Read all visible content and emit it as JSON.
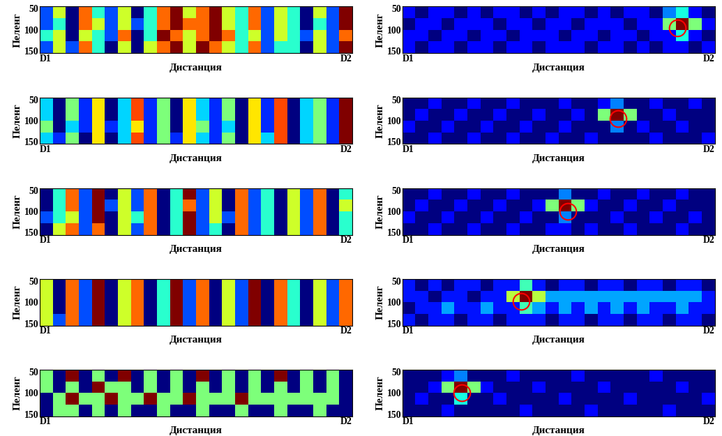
{
  "chart_data": [
    {
      "type": "heatmap",
      "x_label": "Дистанция",
      "y_label": "Пеленг",
      "xlim": [
        0,
        1
      ],
      "xticks": [
        {
          "value": 0,
          "label": "D1"
        },
        {
          "value": 1,
          "label": "D2"
        }
      ],
      "ylim": [
        155,
        45
      ],
      "yticks": [
        50,
        100,
        150
      ],
      "cells": [
        [
          3,
          5,
          2,
          6,
          4,
          3,
          5,
          2,
          4,
          6,
          7,
          5,
          6,
          7,
          5,
          4,
          6,
          3,
          5,
          4,
          2,
          5,
          3,
          7
        ],
        [
          3,
          4,
          2,
          6,
          5,
          3,
          5,
          3,
          4,
          6,
          7,
          6,
          6,
          7,
          5,
          4,
          6,
          3,
          5,
          4,
          2,
          4,
          3,
          7
        ],
        [
          4,
          5,
          2,
          5,
          4,
          3,
          6,
          2,
          4,
          7,
          6,
          5,
          6,
          7,
          6,
          4,
          5,
          3,
          5,
          4,
          3,
          5,
          3,
          6
        ],
        [
          3,
          5,
          3,
          6,
          4,
          2,
          5,
          2,
          5,
          6,
          7,
          5,
          7,
          6,
          5,
          4,
          6,
          3,
          4,
          4,
          2,
          5,
          3,
          7
        ]
      ]
    },
    {
      "type": "heatmap",
      "x_label": "Дистанция",
      "y_label": "Пеленг",
      "xlim": [
        0,
        1
      ],
      "xticks": [
        {
          "value": 0,
          "label": "D1"
        },
        {
          "value": 1,
          "label": "D2"
        }
      ],
      "ylim": [
        155,
        45
      ],
      "yticks": [
        50,
        100,
        150
      ],
      "cells": [
        [
          2,
          1,
          2,
          2,
          1,
          2,
          1,
          2,
          2,
          1,
          2,
          1,
          2,
          2,
          1,
          2,
          1,
          2,
          2,
          1,
          3,
          4,
          2,
          1
        ],
        [
          1,
          2,
          2,
          1,
          2,
          2,
          2,
          1,
          2,
          2,
          1,
          2,
          2,
          1,
          2,
          2,
          2,
          1,
          2,
          2,
          5,
          9,
          5,
          2
        ],
        [
          2,
          2,
          1,
          2,
          2,
          1,
          2,
          2,
          1,
          2,
          2,
          2,
          1,
          2,
          2,
          1,
          2,
          2,
          1,
          2,
          2,
          4,
          2,
          1
        ],
        [
          2,
          1,
          2,
          2,
          1,
          2,
          2,
          1,
          2,
          2,
          1,
          2,
          2,
          2,
          1,
          2,
          2,
          1,
          2,
          1,
          2,
          2,
          1,
          2
        ]
      ],
      "target": [
        0.88,
        95
      ],
      "color": "#ff0000"
    },
    {
      "type": "heatmap",
      "x_label": "Дистанция",
      "y_label": "Пеленг",
      "xlim": [
        0,
        1
      ],
      "xticks": [
        {
          "value": 0,
          "label": "D1"
        },
        {
          "value": 1,
          "label": "D2"
        }
      ],
      "ylim": [
        155,
        45
      ],
      "yticks": [
        50,
        100,
        150
      ],
      "cells": [
        [
          4,
          2,
          5,
          3,
          6,
          2,
          4,
          7,
          3,
          5,
          2,
          6,
          4,
          3,
          5,
          2,
          6,
          3,
          7,
          2,
          4,
          5,
          3,
          8
        ],
        [
          4,
          2,
          5,
          3,
          6,
          2,
          4,
          7,
          3,
          5,
          2,
          6,
          4,
          3,
          5,
          2,
          6,
          3,
          7,
          2,
          4,
          5,
          3,
          8
        ],
        [
          5,
          2,
          4,
          3,
          6,
          3,
          4,
          6,
          3,
          5,
          2,
          6,
          5,
          3,
          4,
          2,
          6,
          3,
          7,
          2,
          4,
          5,
          3,
          8
        ],
        [
          4,
          3,
          5,
          2,
          6,
          2,
          4,
          7,
          3,
          5,
          3,
          6,
          4,
          3,
          5,
          2,
          6,
          4,
          7,
          2,
          4,
          5,
          3,
          8
        ]
      ]
    },
    {
      "type": "heatmap",
      "x_label": "Дистанция",
      "y_label": "Пеленг",
      "xlim": [
        0,
        1
      ],
      "xticks": [
        {
          "value": 0,
          "label": "D1"
        },
        {
          "value": 1,
          "label": "D2"
        }
      ],
      "ylim": [
        155,
        45
      ],
      "yticks": [
        50,
        100,
        150
      ],
      "cells": [
        [
          1,
          1,
          2,
          1,
          1,
          2,
          1,
          1,
          2,
          1,
          1,
          1,
          2,
          1,
          1,
          2,
          3,
          1,
          1,
          2,
          1,
          1,
          2,
          1
        ],
        [
          1,
          2,
          1,
          1,
          2,
          1,
          1,
          2,
          1,
          1,
          2,
          1,
          1,
          2,
          1,
          5,
          9,
          5,
          1,
          1,
          2,
          1,
          1,
          1
        ],
        [
          2,
          1,
          1,
          2,
          1,
          1,
          2,
          1,
          1,
          2,
          1,
          1,
          2,
          1,
          1,
          1,
          3,
          1,
          2,
          1,
          1,
          2,
          1,
          1
        ],
        [
          1,
          1,
          2,
          1,
          1,
          2,
          1,
          1,
          2,
          1,
          1,
          2,
          1,
          1,
          2,
          1,
          1,
          1,
          1,
          2,
          1,
          1,
          1,
          2
        ]
      ],
      "target": [
        0.69,
        95
      ],
      "color": "#ff0000"
    },
    {
      "type": "heatmap",
      "x_label": "Дистанция",
      "y_label": "Пеленг",
      "xlim": [
        0,
        1
      ],
      "xticks": [
        {
          "value": 0,
          "label": "D1"
        },
        {
          "value": 1,
          "label": "D2"
        }
      ],
      "ylim": [
        155,
        45
      ],
      "yticks": [
        50,
        100,
        150
      ],
      "cells": [
        [
          2,
          4,
          6,
          3,
          7,
          2,
          5,
          3,
          6,
          2,
          4,
          7,
          3,
          5,
          2,
          6,
          3,
          4,
          2,
          5,
          3,
          6,
          2,
          4
        ],
        [
          2,
          4,
          6,
          3,
          7,
          3,
          5,
          3,
          6,
          2,
          4,
          6,
          3,
          5,
          2,
          6,
          3,
          4,
          2,
          5,
          3,
          6,
          2,
          5
        ],
        [
          3,
          4,
          5,
          3,
          7,
          2,
          5,
          4,
          6,
          2,
          4,
          7,
          3,
          5,
          3,
          6,
          3,
          4,
          2,
          5,
          3,
          6,
          2,
          4
        ],
        [
          2,
          5,
          6,
          3,
          6,
          2,
          5,
          3,
          6,
          2,
          4,
          7,
          3,
          4,
          2,
          6,
          3,
          4,
          2,
          5,
          3,
          6,
          2,
          4
        ]
      ]
    },
    {
      "type": "heatmap",
      "x_label": "Дистанция",
      "y_label": "Пеленг",
      "xlim": [
        0,
        1
      ],
      "xticks": [
        {
          "value": 0,
          "label": "D1"
        },
        {
          "value": 1,
          "label": "D2"
        }
      ],
      "ylim": [
        155,
        45
      ],
      "yticks": [
        50,
        100,
        150
      ],
      "cells": [
        [
          1,
          1,
          2,
          1,
          1,
          2,
          1,
          1,
          2,
          1,
          1,
          1,
          3,
          1,
          1,
          2,
          1,
          1,
          2,
          1,
          1,
          2,
          1,
          1
        ],
        [
          1,
          2,
          1,
          1,
          2,
          1,
          1,
          2,
          1,
          1,
          2,
          5,
          9,
          5,
          2,
          1,
          1,
          2,
          1,
          1,
          2,
          1,
          1,
          1
        ],
        [
          2,
          1,
          1,
          2,
          1,
          1,
          2,
          1,
          1,
          2,
          1,
          1,
          3,
          1,
          1,
          1,
          2,
          1,
          1,
          2,
          1,
          1,
          2,
          1
        ],
        [
          1,
          1,
          2,
          1,
          1,
          2,
          1,
          1,
          2,
          1,
          1,
          2,
          2,
          1,
          2,
          1,
          1,
          2,
          1,
          1,
          1,
          2,
          1,
          1
        ]
      ],
      "target": [
        0.53,
        100
      ],
      "color": "#ff0000"
    },
    {
      "type": "heatmap",
      "x_label": "Дистанция",
      "y_label": "Пеленг",
      "xlim": [
        0,
        1
      ],
      "xticks": [
        {
          "value": 0,
          "label": "D1"
        },
        {
          "value": 1,
          "label": "D2"
        }
      ],
      "ylim": [
        155,
        45
      ],
      "yticks": [
        50,
        100,
        150
      ],
      "cells": [
        [
          5,
          2,
          6,
          3,
          7,
          2,
          5,
          6,
          2,
          4,
          7,
          3,
          6,
          2,
          5,
          3,
          7,
          2,
          6,
          4,
          2,
          5,
          3,
          6
        ],
        [
          5,
          2,
          6,
          3,
          7,
          2,
          5,
          6,
          2,
          4,
          7,
          3,
          6,
          2,
          5,
          3,
          7,
          2,
          6,
          4,
          2,
          5,
          3,
          6
        ],
        [
          5,
          2,
          6,
          3,
          7,
          2,
          5,
          6,
          2,
          4,
          7,
          3,
          6,
          2,
          5,
          3,
          7,
          2,
          6,
          4,
          2,
          5,
          3,
          6
        ],
        [
          5,
          3,
          6,
          3,
          7,
          2,
          5,
          6,
          2,
          4,
          7,
          3,
          6,
          2,
          5,
          3,
          7,
          2,
          6,
          4,
          2,
          5,
          3,
          6
        ]
      ]
    },
    {
      "type": "heatmap",
      "x_label": "Дистанция",
      "y_label": "Пеленг",
      "xlim": [
        0,
        1
      ],
      "xticks": [
        {
          "value": 0,
          "label": "D1"
        },
        {
          "value": 1,
          "label": "D2"
        }
      ],
      "ylim": [
        155,
        45
      ],
      "yticks": [
        50,
        100,
        150
      ],
      "cells": [
        [
          2,
          1,
          2,
          1,
          2,
          2,
          1,
          2,
          2,
          4,
          2,
          1,
          2,
          2,
          1,
          2,
          2,
          1,
          2,
          2,
          1,
          2,
          2,
          1
        ],
        [
          2,
          2,
          1,
          2,
          2,
          1,
          2,
          2,
          5,
          8,
          5,
          3,
          3,
          3,
          3,
          3,
          3,
          3,
          3,
          3,
          3,
          3,
          3,
          2
        ],
        [
          1,
          2,
          2,
          3,
          2,
          2,
          3,
          2,
          2,
          4,
          3,
          2,
          3,
          2,
          3,
          2,
          3,
          2,
          3,
          2,
          2,
          3,
          2,
          2
        ],
        [
          2,
          1,
          2,
          2,
          1,
          2,
          2,
          1,
          2,
          2,
          2,
          1,
          2,
          2,
          1,
          2,
          2,
          1,
          2,
          2,
          1,
          2,
          2,
          1
        ]
      ],
      "target": [
        0.38,
        98
      ],
      "color": "#ff0000"
    },
    {
      "type": "heatmap",
      "x_label": "Дистанция",
      "y_label": "Пеленг",
      "xlim": [
        0,
        1
      ],
      "xticks": [
        {
          "value": 0,
          "label": "D1"
        },
        {
          "value": 1,
          "label": "D2"
        }
      ],
      "ylim": [
        155,
        45
      ],
      "yticks": [
        50,
        100,
        150
      ],
      "cells": [
        [
          3,
          2,
          4,
          2,
          3,
          2,
          4,
          2,
          3,
          2,
          3,
          2,
          4,
          2,
          3,
          2,
          3,
          2,
          4,
          2,
          3,
          2,
          3,
          2
        ],
        [
          3,
          2,
          3,
          2,
          4,
          3,
          3,
          2,
          3,
          2,
          3,
          2,
          3,
          2,
          3,
          2,
          3,
          2,
          3,
          2,
          3,
          2,
          3,
          2
        ],
        [
          2,
          3,
          4,
          3,
          3,
          4,
          3,
          3,
          4,
          3,
          3,
          4,
          3,
          3,
          3,
          4,
          3,
          3,
          3,
          3,
          3,
          3,
          3,
          2
        ],
        [
          2,
          3,
          3,
          2,
          3,
          2,
          3,
          2,
          2,
          3,
          2,
          2,
          3,
          2,
          2,
          3,
          2,
          2,
          3,
          2,
          2,
          3,
          2,
          2
        ]
      ]
    },
    {
      "type": "heatmap",
      "x_label": "Дистанция",
      "y_label": "Пеленг",
      "xlim": [
        0,
        1
      ],
      "xticks": [
        {
          "value": 0,
          "label": "D1"
        },
        {
          "value": 1,
          "label": "D2"
        }
      ],
      "ylim": [
        155,
        45
      ],
      "yticks": [
        50,
        100,
        150
      ],
      "cells": [
        [
          1,
          1,
          1,
          2,
          3,
          1,
          1,
          1,
          2,
          1,
          1,
          1,
          1,
          2,
          1,
          1,
          1,
          1,
          1,
          2,
          1,
          1,
          1,
          1
        ],
        [
          1,
          1,
          2,
          5,
          9,
          5,
          2,
          1,
          1,
          1,
          2,
          1,
          1,
          1,
          1,
          2,
          1,
          1,
          1,
          1,
          1,
          2,
          1,
          1
        ],
        [
          1,
          2,
          1,
          1,
          4,
          1,
          1,
          2,
          1,
          1,
          1,
          1,
          2,
          1,
          1,
          1,
          1,
          2,
          1,
          1,
          1,
          1,
          1,
          2
        ],
        [
          1,
          1,
          1,
          2,
          1,
          1,
          1,
          1,
          1,
          2,
          1,
          1,
          1,
          1,
          2,
          1,
          1,
          1,
          1,
          1,
          2,
          1,
          1,
          1
        ]
      ],
      "target": [
        0.19,
        100
      ],
      "color": "#ff0000"
    }
  ]
}
